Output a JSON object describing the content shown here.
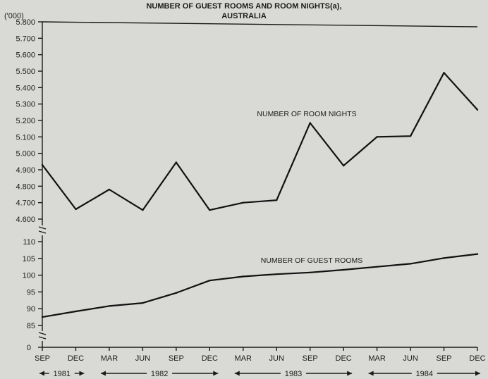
{
  "chart_data": {
    "type": "line",
    "title": "NUMBER OF GUEST ROOMS AND ROOM NIGHTS(a),",
    "subtitle": "AUSTRALIA",
    "unit_label": "('000)",
    "categories": [
      "SEP",
      "DEC",
      "MAR",
      "JUN",
      "SEP",
      "DEC",
      "MAR",
      "JUN",
      "SEP",
      "DEC",
      "MAR",
      "JUN",
      "SEP",
      "DEC"
    ],
    "year_labels": [
      "1981",
      "1982",
      "1983",
      "1984"
    ],
    "upper_panel": {
      "yticks": [
        "5.800",
        "5.700",
        "5.600",
        "5.500",
        "5.400",
        "5.300",
        "5.200",
        "5.100",
        "5.000",
        "4.900",
        "4.800",
        "4.700",
        "4.600"
      ],
      "ylim": [
        4600,
        5800
      ]
    },
    "lower_panel": {
      "yticks": [
        "110",
        "105",
        "100",
        "95",
        "90",
        "85"
      ],
      "ylim": [
        85,
        110
      ],
      "zero_label": "0"
    },
    "series": [
      {
        "name": "NUMBER OF ROOM NIGHTS",
        "panel": "upper",
        "values": [
          4930,
          4660,
          4780,
          4655,
          4945,
          4655,
          4700,
          4715,
          5185,
          4925,
          5100,
          5105,
          5490,
          5265
        ]
      },
      {
        "name": "NUMBER OF GUEST ROOMS",
        "panel": "lower",
        "values": [
          87.5,
          89.2,
          90.8,
          91.7,
          94.7,
          98.4,
          99.6,
          100.3,
          100.8,
          101.6,
          102.5,
          103.4,
          105.1,
          106.3
        ]
      }
    ]
  }
}
